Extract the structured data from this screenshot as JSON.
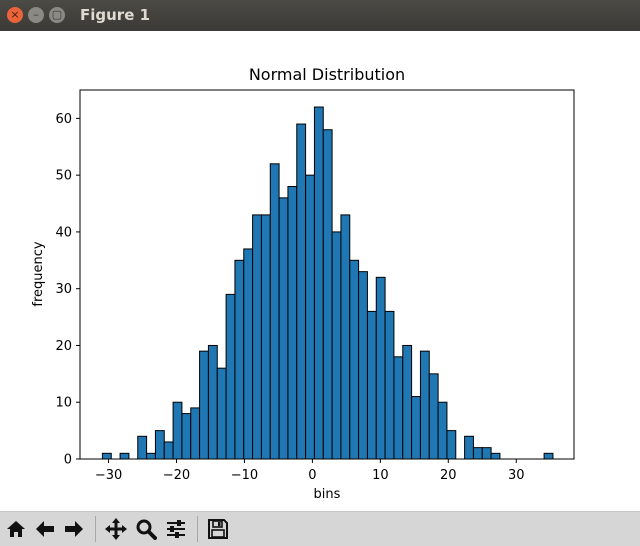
{
  "window": {
    "title": "Figure 1",
    "close_glyph": "×",
    "min_glyph": "–",
    "max_glyph": "▢"
  },
  "toolbar": {
    "buttons": [
      {
        "name": "home-button",
        "icon": "home-icon"
      },
      {
        "name": "back-button",
        "icon": "arrow-left-icon"
      },
      {
        "name": "forward-button",
        "icon": "arrow-right-icon"
      },
      {
        "name": "pan-button",
        "icon": "move-icon"
      },
      {
        "name": "zoom-button",
        "icon": "magnifier-icon"
      },
      {
        "name": "configure-subplots-button",
        "icon": "sliders-icon"
      },
      {
        "name": "save-button",
        "icon": "floppy-icon"
      }
    ]
  },
  "chart_data": {
    "type": "bar",
    "title": "Normal Distribution",
    "xlabel": "bins",
    "ylabel": "frequency",
    "xlim": [
      -34.2,
      38.5
    ],
    "ylim": [
      0,
      65
    ],
    "xticks": [
      -30,
      -20,
      -10,
      0,
      10,
      20,
      30
    ],
    "xtick_labels": [
      "−30",
      "−20",
      "−10",
      "0",
      "10",
      "20",
      "30"
    ],
    "yticks": [
      0,
      10,
      20,
      30,
      40,
      50,
      60
    ],
    "ytick_labels": [
      "0",
      "10",
      "20",
      "30",
      "40",
      "50",
      "60"
    ],
    "bin_start": -30.9,
    "bin_width": 1.3,
    "values": [
      1,
      0,
      1,
      0,
      4,
      1,
      5,
      3,
      10,
      8,
      9,
      19,
      20,
      16,
      29,
      35,
      37,
      43,
      43,
      52,
      46,
      48,
      59,
      50,
      62,
      58,
      40,
      43,
      35,
      33,
      26,
      32,
      26,
      18,
      20,
      11,
      19,
      15,
      10,
      5,
      0,
      4,
      2,
      2,
      1,
      0,
      0,
      0,
      0,
      0,
      1
    ],
    "bar_color": "#1f77b4",
    "edge_color": "#000000",
    "grid": false
  }
}
